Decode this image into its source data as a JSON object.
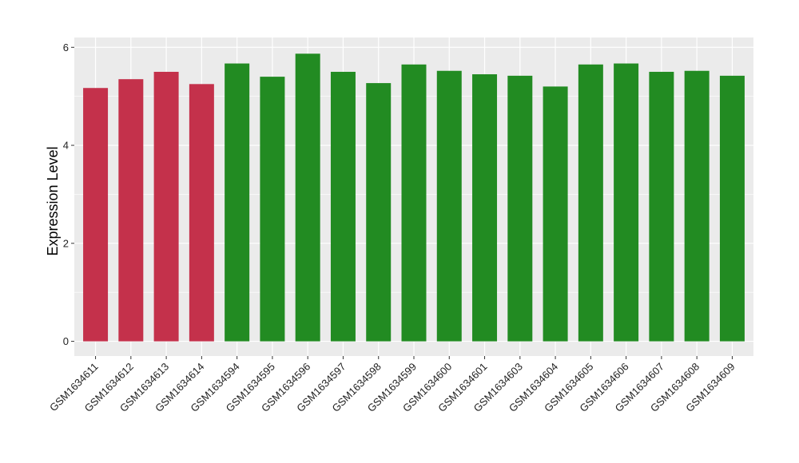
{
  "chart_data": {
    "type": "bar",
    "title": "",
    "xlabel": "",
    "ylabel": "Expression Level",
    "ylim": [
      -0.3,
      6.2
    ],
    "yticks": [
      0,
      2,
      4,
      6
    ],
    "grid": true,
    "legend": "none",
    "colors": {
      "group_1": "#c4314b",
      "group_2": "#228b22",
      "panel_bg": "#ebebeb",
      "grid": "#ffffff"
    },
    "categories": [
      "GSM1634611",
      "GSM1634612",
      "GSM1634613",
      "GSM1634614",
      "GSM1634594",
      "GSM1634595",
      "GSM1634596",
      "GSM1634597",
      "GSM1634598",
      "GSM1634599",
      "GSM1634600",
      "GSM1634601",
      "GSM1634603",
      "GSM1634604",
      "GSM1634605",
      "GSM1634606",
      "GSM1634607",
      "GSM1634608",
      "GSM1634609"
    ],
    "values": [
      5.17,
      5.35,
      5.5,
      5.25,
      5.67,
      5.4,
      5.87,
      5.5,
      5.27,
      5.65,
      5.52,
      5.45,
      5.42,
      5.2,
      5.65,
      5.67,
      5.5,
      5.52,
      5.42
    ],
    "groups": [
      1,
      1,
      1,
      1,
      2,
      2,
      2,
      2,
      2,
      2,
      2,
      2,
      2,
      2,
      2,
      2,
      2,
      2,
      2
    ]
  }
}
